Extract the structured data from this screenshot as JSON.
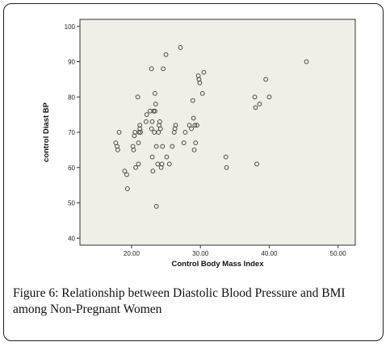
{
  "chart_data": {
    "type": "scatter",
    "xlabel": "Control Body Mass Index",
    "ylabel": "control Diast BP",
    "xlim": [
      12.5,
      52.5
    ],
    "ylim": [
      38,
      102
    ],
    "x_ticks": [
      "20.00",
      "30.00",
      "40.00",
      "50.00"
    ],
    "y_ticks": [
      "40",
      "50",
      "60",
      "70",
      "80",
      "90",
      "100"
    ],
    "grid": false,
    "background_color": "#efefe7",
    "marker_color": "#333333",
    "points": [
      {
        "x": 17.7,
        "y": 67
      },
      {
        "x": 17.9,
        "y": 66
      },
      {
        "x": 18.0,
        "y": 65
      },
      {
        "x": 18.2,
        "y": 70
      },
      {
        "x": 19.0,
        "y": 59
      },
      {
        "x": 19.3,
        "y": 58
      },
      {
        "x": 19.4,
        "y": 54
      },
      {
        "x": 20.2,
        "y": 66
      },
      {
        "x": 20.3,
        "y": 65
      },
      {
        "x": 20.4,
        "y": 69
      },
      {
        "x": 20.5,
        "y": 70
      },
      {
        "x": 20.6,
        "y": 60
      },
      {
        "x": 20.9,
        "y": 80
      },
      {
        "x": 21.0,
        "y": 61
      },
      {
        "x": 21.0,
        "y": 67
      },
      {
        "x": 21.1,
        "y": 70
      },
      {
        "x": 21.2,
        "y": 71
      },
      {
        "x": 21.2,
        "y": 72
      },
      {
        "x": 21.3,
        "y": 70
      },
      {
        "x": 22.1,
        "y": 73
      },
      {
        "x": 22.2,
        "y": 75
      },
      {
        "x": 22.7,
        "y": 76
      },
      {
        "x": 22.9,
        "y": 71
      },
      {
        "x": 22.9,
        "y": 88
      },
      {
        "x": 23.0,
        "y": 73
      },
      {
        "x": 23.0,
        "y": 63
      },
      {
        "x": 23.1,
        "y": 59
      },
      {
        "x": 23.2,
        "y": 76
      },
      {
        "x": 23.3,
        "y": 70
      },
      {
        "x": 23.4,
        "y": 76
      },
      {
        "x": 23.4,
        "y": 81
      },
      {
        "x": 23.5,
        "y": 78
      },
      {
        "x": 23.6,
        "y": 66
      },
      {
        "x": 23.6,
        "y": 49
      },
      {
        "x": 23.8,
        "y": 61
      },
      {
        "x": 23.9,
        "y": 70
      },
      {
        "x": 24.0,
        "y": 72
      },
      {
        "x": 24.1,
        "y": 73
      },
      {
        "x": 24.2,
        "y": 71
      },
      {
        "x": 24.3,
        "y": 60
      },
      {
        "x": 24.4,
        "y": 61
      },
      {
        "x": 24.5,
        "y": 66
      },
      {
        "x": 24.6,
        "y": 88
      },
      {
        "x": 25.0,
        "y": 92
      },
      {
        "x": 25.1,
        "y": 63
      },
      {
        "x": 25.5,
        "y": 61
      },
      {
        "x": 25.9,
        "y": 66
      },
      {
        "x": 26.2,
        "y": 70
      },
      {
        "x": 26.3,
        "y": 71
      },
      {
        "x": 26.4,
        "y": 72
      },
      {
        "x": 27.1,
        "y": 94
      },
      {
        "x": 27.6,
        "y": 67
      },
      {
        "x": 27.8,
        "y": 70
      },
      {
        "x": 28.4,
        "y": 72
      },
      {
        "x": 28.7,
        "y": 71
      },
      {
        "x": 28.9,
        "y": 79
      },
      {
        "x": 29.0,
        "y": 74
      },
      {
        "x": 29.1,
        "y": 65
      },
      {
        "x": 29.2,
        "y": 72
      },
      {
        "x": 29.3,
        "y": 67
      },
      {
        "x": 29.5,
        "y": 72
      },
      {
        "x": 29.7,
        "y": 86
      },
      {
        "x": 29.8,
        "y": 85
      },
      {
        "x": 29.9,
        "y": 84
      },
      {
        "x": 30.3,
        "y": 81
      },
      {
        "x": 30.5,
        "y": 87
      },
      {
        "x": 33.7,
        "y": 63
      },
      {
        "x": 33.8,
        "y": 60
      },
      {
        "x": 37.9,
        "y": 80
      },
      {
        "x": 38.0,
        "y": 77
      },
      {
        "x": 38.2,
        "y": 61
      },
      {
        "x": 38.6,
        "y": 78
      },
      {
        "x": 39.5,
        "y": 85
      },
      {
        "x": 40.0,
        "y": 80
      },
      {
        "x": 45.4,
        "y": 90
      }
    ]
  },
  "caption": {
    "label": "Figure 6:",
    "text": " Relationship between Diastolic Blood Pressure and BMI among Non-Pregnant Women"
  }
}
